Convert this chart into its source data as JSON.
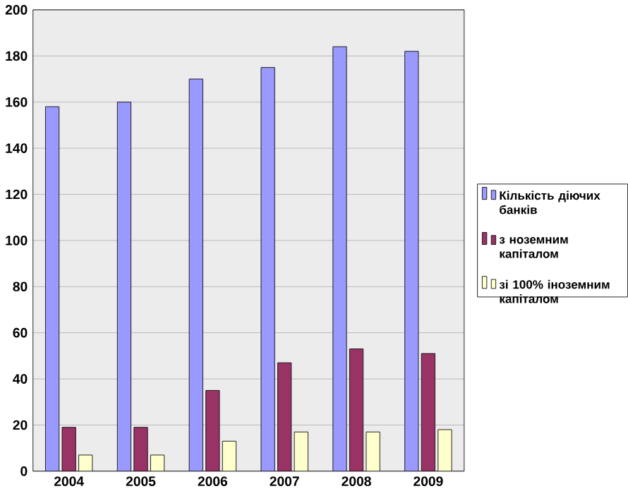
{
  "chart_data": {
    "type": "bar",
    "categories": [
      "2004",
      "2005",
      "2006",
      "2007",
      "2008",
      "2009"
    ],
    "series": [
      {
        "name": "Кількість діючих банків",
        "color": "#9999ff",
        "values": [
          158,
          160,
          170,
          175,
          184,
          182
        ]
      },
      {
        "name": "з ноземним капіталом",
        "color": "#993366",
        "values": [
          19,
          19,
          35,
          47,
          53,
          51
        ]
      },
      {
        "name": "зі 100% іноземним капіталом",
        "color": "#ffffcc",
        "values": [
          7,
          7,
          13,
          17,
          17,
          18
        ]
      }
    ],
    "ylim": [
      0,
      200
    ],
    "yticks": [
      0,
      20,
      40,
      60,
      80,
      100,
      120,
      140,
      160,
      180,
      200
    ],
    "grid": "y",
    "legend": "right"
  }
}
